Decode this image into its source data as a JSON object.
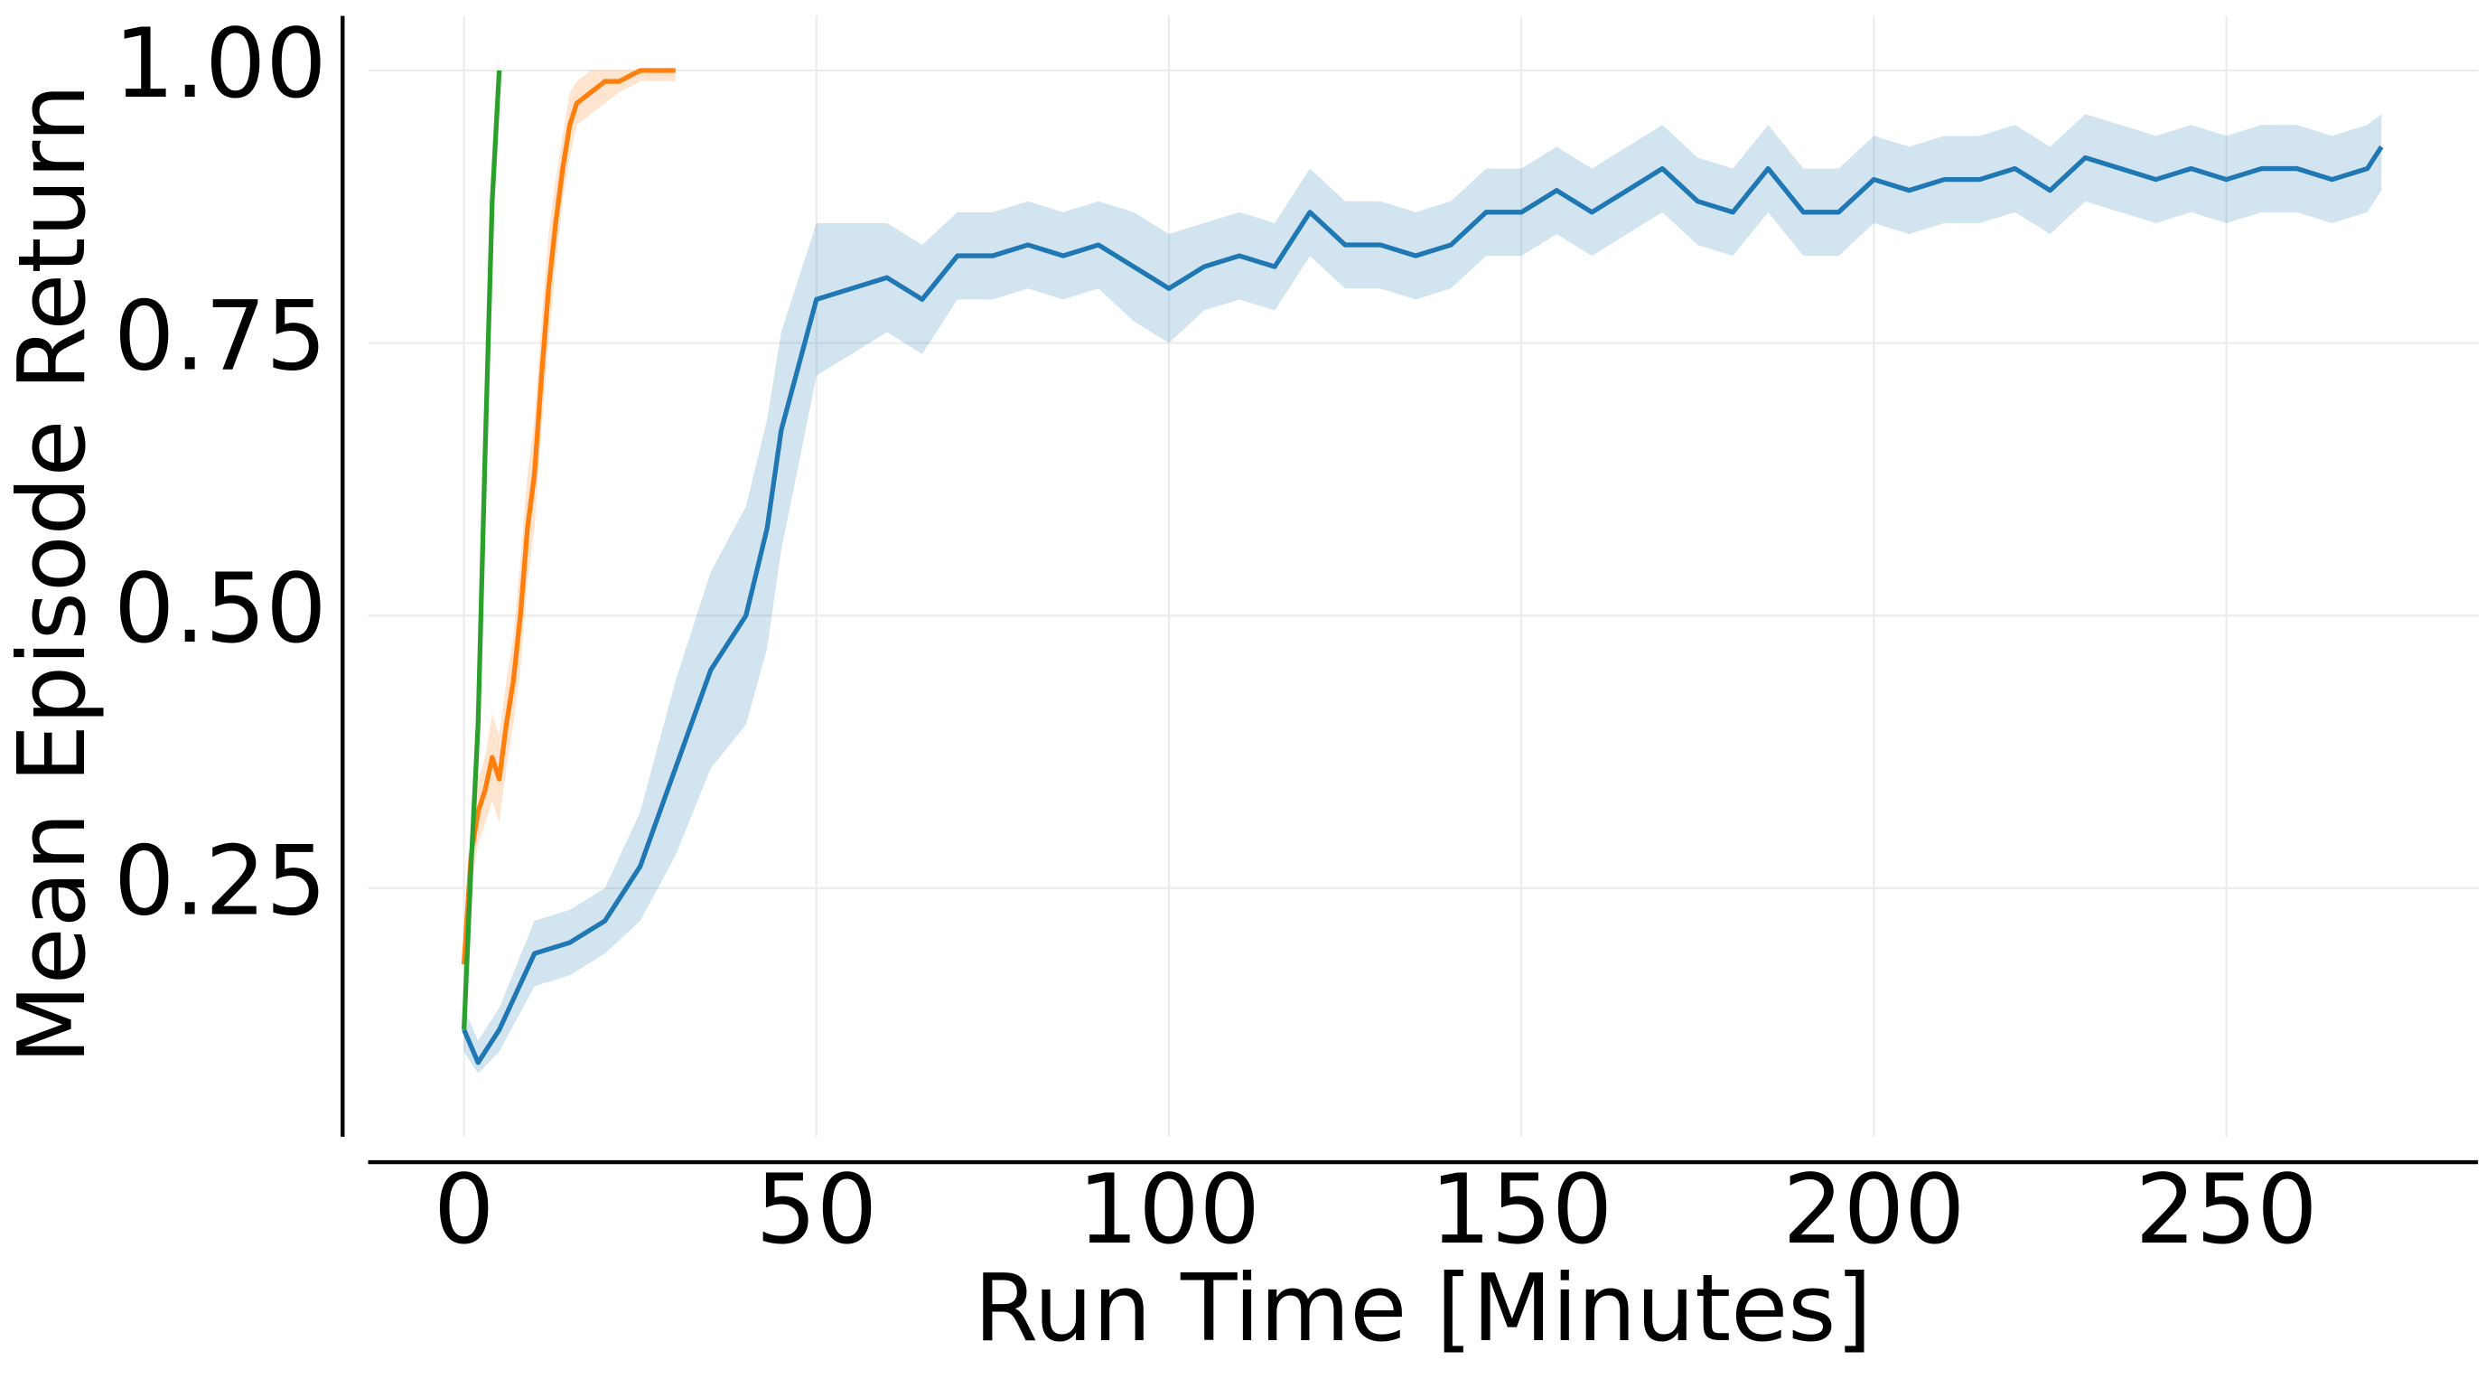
{
  "chart_data": {
    "type": "line",
    "xlabel": "Run Time [Minutes]",
    "ylabel": "Mean Episode Return",
    "xlim": [
      -13.6,
      285.7
    ],
    "ylim": [
      0.022,
      1.05
    ],
    "xticks": [
      0,
      50,
      100,
      150,
      200,
      250
    ],
    "yticks": [
      0.25,
      {
        "value": 0.5,
        "label": "0.50"
      },
      0.75,
      {
        "value": 1,
        "label": "1.00"
      }
    ],
    "grid": true,
    "series": [
      {
        "color": "#1f77b4",
        "x": [
          0,
          2,
          5,
          10,
          15,
          20,
          25,
          30,
          35,
          40,
          43,
          45,
          50,
          55,
          60,
          65,
          70,
          75,
          80,
          85,
          90,
          95,
          100,
          105,
          110,
          115,
          120,
          125,
          130,
          135,
          140,
          145,
          150,
          155,
          160,
          165,
          170,
          175,
          180,
          185,
          190,
          195,
          200,
          205,
          210,
          215,
          220,
          225,
          230,
          235,
          240,
          245,
          250,
          255,
          260,
          265,
          270,
          272
        ],
        "values": [
          0.12,
          0.09,
          0.12,
          0.19,
          0.2,
          0.22,
          0.27,
          0.36,
          0.45,
          0.5,
          0.58,
          0.67,
          0.79,
          0.8,
          0.81,
          0.79,
          0.83,
          0.83,
          0.84,
          0.83,
          0.84,
          0.82,
          0.8,
          0.82,
          0.83,
          0.82,
          0.87,
          0.84,
          0.84,
          0.83,
          0.84,
          0.87,
          0.87,
          0.89,
          0.87,
          0.89,
          0.91,
          0.88,
          0.87,
          0.91,
          0.87,
          0.87,
          0.9,
          0.89,
          0.9,
          0.9,
          0.91,
          0.89,
          0.92,
          0.91,
          0.9,
          0.91,
          0.9,
          0.91,
          0.91,
          0.9,
          0.91,
          0.93
        ],
        "lower": [
          0.1,
          0.08,
          0.1,
          0.16,
          0.17,
          0.19,
          0.22,
          0.28,
          0.36,
          0.4,
          0.47,
          0.56,
          0.72,
          0.74,
          0.76,
          0.74,
          0.79,
          0.79,
          0.8,
          0.79,
          0.8,
          0.77,
          0.75,
          0.78,
          0.79,
          0.78,
          0.83,
          0.8,
          0.8,
          0.79,
          0.8,
          0.83,
          0.83,
          0.85,
          0.83,
          0.85,
          0.87,
          0.84,
          0.83,
          0.87,
          0.83,
          0.83,
          0.86,
          0.85,
          0.86,
          0.86,
          0.87,
          0.85,
          0.88,
          0.87,
          0.86,
          0.87,
          0.86,
          0.87,
          0.87,
          0.86,
          0.87,
          0.89
        ],
        "upper": [
          0.14,
          0.11,
          0.14,
          0.22,
          0.23,
          0.25,
          0.32,
          0.44,
          0.54,
          0.6,
          0.68,
          0.76,
          0.86,
          0.86,
          0.86,
          0.84,
          0.87,
          0.87,
          0.88,
          0.87,
          0.88,
          0.87,
          0.85,
          0.86,
          0.87,
          0.86,
          0.91,
          0.88,
          0.88,
          0.87,
          0.88,
          0.91,
          0.91,
          0.93,
          0.91,
          0.93,
          0.95,
          0.92,
          0.91,
          0.95,
          0.91,
          0.91,
          0.94,
          0.93,
          0.94,
          0.94,
          0.95,
          0.93,
          0.96,
          0.95,
          0.94,
          0.95,
          0.94,
          0.95,
          0.95,
          0.94,
          0.95,
          0.96
        ]
      },
      {
        "color": "#ff7f0e",
        "x": [
          0,
          1,
          2,
          3,
          4,
          5,
          6,
          7,
          8,
          9,
          10,
          11,
          12,
          13,
          14,
          15,
          16,
          18,
          20,
          22,
          25,
          28,
          30
        ],
        "values": [
          0.18,
          0.28,
          0.32,
          0.34,
          0.37,
          0.35,
          0.4,
          0.44,
          0.5,
          0.58,
          0.63,
          0.72,
          0.8,
          0.86,
          0.91,
          0.95,
          0.97,
          0.98,
          0.99,
          0.99,
          1,
          1,
          1
        ],
        "lower": [
          0.16,
          0.25,
          0.29,
          0.31,
          0.33,
          0.31,
          0.36,
          0.4,
          0.45,
          0.53,
          0.58,
          0.67,
          0.75,
          0.82,
          0.88,
          0.92,
          0.95,
          0.96,
          0.97,
          0.98,
          0.99,
          0.99,
          0.99
        ],
        "upper": [
          0.2,
          0.31,
          0.35,
          0.37,
          0.41,
          0.39,
          0.44,
          0.48,
          0.55,
          0.63,
          0.68,
          0.77,
          0.85,
          0.9,
          0.94,
          0.98,
          0.99,
          1,
          1,
          1,
          1,
          1,
          1
        ]
      },
      {
        "color": "#2ca02c",
        "x": [
          0,
          1,
          2,
          3,
          4,
          5
        ],
        "values": [
          0.12,
          0.27,
          0.4,
          0.65,
          0.88,
          1
        ]
      }
    ]
  }
}
